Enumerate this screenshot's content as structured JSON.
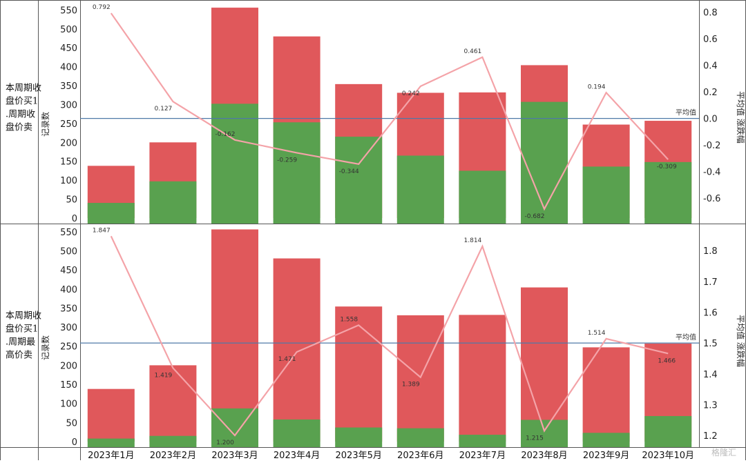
{
  "categories": [
    "2023年1月",
    "2023年2月",
    "2023年3月",
    "2023年4月",
    "2023年5月",
    "2023年6月",
    "2023年7月",
    "2023年8月",
    "2023年9月",
    "2023年10月"
  ],
  "colors": {
    "red": "#e0585b",
    "green": "#59a14f",
    "line": "#f4a3a8",
    "avg_line": "#4e79a7",
    "border": "#555555"
  },
  "watermark": "格隆汇",
  "chart_data": [
    {
      "type": "bar",
      "row_label": "本周期收盘价买1.周期收盘价卖",
      "left_axis": {
        "label": "记录数",
        "ylim": [
          0,
          560
        ],
        "ticks": [
          0,
          50,
          100,
          150,
          200,
          250,
          300,
          350,
          400,
          450,
          500,
          550
        ]
      },
      "right_axis": {
        "label": "平均值 涨跌幅",
        "ylim": [
          -0.75,
          0.85
        ],
        "ticks": [
          -0.6,
          -0.4,
          -0.2,
          0.0,
          0.2,
          0.4,
          0.6,
          0.8
        ],
        "tick_labels": [
          "-0.6",
          "-0.4",
          "-0.2",
          "0.0",
          "0.2",
          "0.4",
          "0.6",
          "0.8"
        ]
      },
      "series": [
        {
          "values": [
            40,
            97,
            302,
            253,
            215,
            165,
            125,
            307,
            136,
            148
          ]
        },
        {
          "values": [
            138,
            200,
            556,
            480,
            354,
            331,
            332,
            404,
            247,
            257
          ]
        }
      ],
      "line": {
        "values": [
          0.792,
          0.127,
          -0.162,
          -0.259,
          -0.344,
          0.242,
          0.461,
          -0.682,
          0.194,
          -0.309
        ],
        "labels": [
          "0.792",
          "0.127",
          "-0.162",
          "-0.259",
          "-0.344",
          "0.242",
          "0.461",
          "-0.682",
          "0.194",
          "-0.309"
        ]
      },
      "reference_line": {
        "label": "平均值",
        "value": 0.0
      }
    },
    {
      "type": "bar",
      "row_label": "本周期收盘价买1.周期最高价卖",
      "left_axis": {
        "label": "记录数",
        "ylim": [
          0,
          560
        ],
        "ticks": [
          0,
          50,
          100,
          150,
          200,
          250,
          300,
          350,
          400,
          450,
          500,
          550
        ]
      },
      "right_axis": {
        "label": "平均值 涨跌幅",
        "ylim": [
          1.18,
          1.87
        ],
        "ticks": [
          1.2,
          1.3,
          1.4,
          1.5,
          1.6,
          1.7,
          1.8
        ],
        "tick_labels": [
          "1.2",
          "1.3",
          "1.4",
          "1.5",
          "1.6",
          "1.7",
          "1.8"
        ]
      },
      "series": [
        {
          "values": [
            8,
            15,
            87,
            58,
            37,
            35,
            18,
            57,
            23,
            67
          ]
        },
        {
          "values": [
            138,
            200,
            556,
            480,
            354,
            331,
            332,
            404,
            247,
            257
          ]
        }
      ],
      "line": {
        "values": [
          1.847,
          1.419,
          1.2,
          1.471,
          1.558,
          1.389,
          1.814,
          1.215,
          1.514,
          1.466
        ],
        "labels": [
          "1.847",
          "1.419",
          "1.200",
          "1.471",
          "1.558",
          "1.389",
          "1.814",
          "1.215",
          "1.514",
          "1.466"
        ]
      },
      "reference_line": {
        "label": "平均值",
        "value": 1.5
      }
    }
  ]
}
